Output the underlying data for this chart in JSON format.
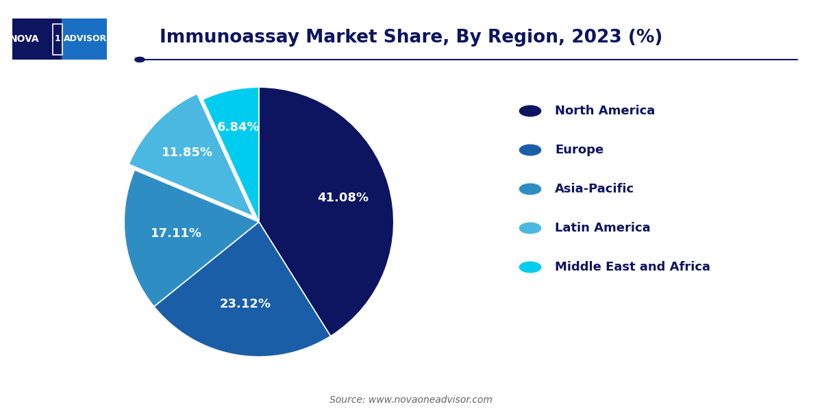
{
  "title": "Immunoassay Market Share, By Region, 2023 (%)",
  "values": [
    41.08,
    23.12,
    17.11,
    11.85,
    6.84
  ],
  "labels": [
    "North America",
    "Europe",
    "Asia-Pacific",
    "Latin America",
    "Middle East and Africa"
  ],
  "pct_labels": [
    "41.08%",
    "23.12%",
    "17.11%",
    "11.85%",
    "6.84%"
  ],
  "colors": [
    "#0d1460",
    "#1a5ea8",
    "#2e8ec4",
    "#4ab8e0",
    "#00ccf0"
  ],
  "explode": [
    0,
    0,
    0,
    0.06,
    0
  ],
  "startangle": 90,
  "source": "Source: www.novaoneadvisor.com",
  "title_color": "#0d1460",
  "legend_text_color": "#0d1460",
  "bg_color": "#ffffff",
  "logo_bg_left": "#0d1460",
  "logo_bg_right": "#1a6fc4",
  "line_color": "#0d1460",
  "label_radii": [
    0.65,
    0.62,
    0.62,
    0.68,
    0.72
  ],
  "label_fontsize": 13
}
